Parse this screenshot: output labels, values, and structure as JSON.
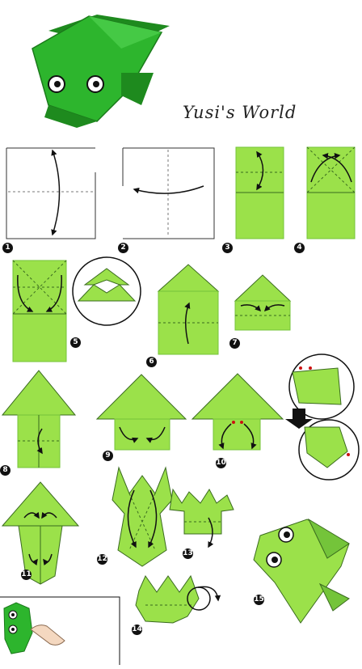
{
  "title": "Yusi's World",
  "steps": [
    "1",
    "2",
    "3",
    "4",
    "5",
    "6",
    "7",
    "8",
    "9",
    "10",
    "11",
    "12",
    "13",
    "14",
    "15"
  ],
  "colors": {
    "paper": "#9be14a",
    "paper_dark": "#74c43a",
    "outline": "#3a6b1f",
    "frog": "#2db52d",
    "frog_dark": "#1e8a1e",
    "arrow": "#111111",
    "accent": "#cc1111"
  }
}
